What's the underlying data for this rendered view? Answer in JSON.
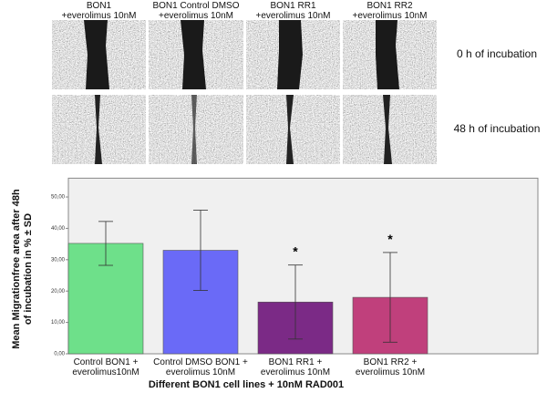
{
  "figure": {
    "columns": [
      "BON1\n+everolimus 10nM",
      "BON1 Control DMSO\n+everolimus 10nM",
      "BON1 RR1\n+everolimus 10nM",
      "BON1 RR2\n+everolimus 10nM"
    ],
    "rows": [
      "0 h of incubation",
      "48 h of incubation"
    ]
  },
  "chart_data": {
    "type": "bar",
    "x_label": "Different BON1 cell lines + 10nM RAD001",
    "y_label": "Mean Migrationfree area after 48h\nof incubation in % ± SD",
    "categories": [
      "Control BON1 +\neverolimus10nM",
      "Control DMSO BON1 +\neverolimus 10nM",
      "BON1 RR1 +\neverolimus 10nM",
      "BON1 RR2 +\neverolimus 10nM"
    ],
    "values": [
      35.2,
      33,
      16.5,
      18
    ],
    "errors": [
      7,
      12.8,
      11.8,
      14.3
    ],
    "colors": [
      "#6ee08a",
      "#6a6af7",
      "#7b2a86",
      "#c0407c"
    ],
    "significance": [
      null,
      null,
      "*",
      "*"
    ],
    "ylim": [
      0,
      56
    ],
    "yticks": [
      {
        "value": 0,
        "label": "0,00"
      },
      {
        "value": 10,
        "label": "10,00"
      },
      {
        "value": 20,
        "label": "20,00"
      },
      {
        "value": 30,
        "label": "30,00"
      },
      {
        "value": 40,
        "label": "40,00"
      },
      {
        "value": 50,
        "label": "50,00"
      }
    ]
  }
}
